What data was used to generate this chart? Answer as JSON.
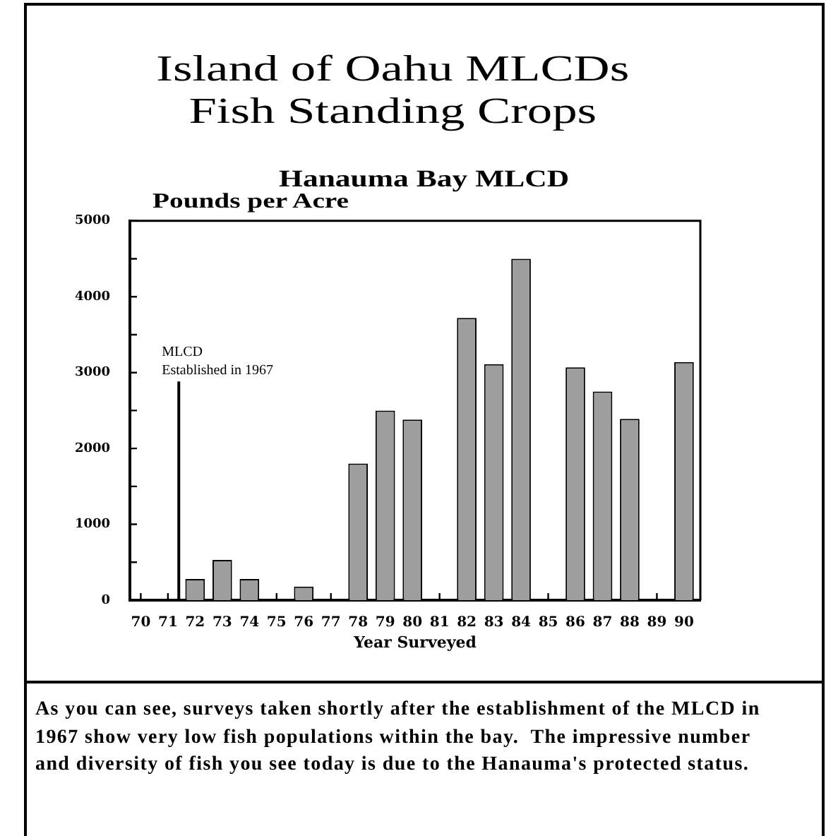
{
  "chart_data": {
    "type": "bar",
    "title": "Island of Oahu MLCDs\nFish Standing Crops",
    "subtitle": "Hanauma Bay MLCD",
    "ylabel": "Pounds per Acre",
    "xlabel": "Year Surveyed",
    "x": [
      72,
      73,
      74,
      76,
      78,
      79,
      80,
      82,
      83,
      84,
      86,
      87,
      88,
      90
    ],
    "values": [
      280,
      530,
      280,
      180,
      1800,
      2500,
      2380,
      3720,
      3110,
      4500,
      3070,
      2750,
      2390,
      3140
    ],
    "color": "#9e9e9e",
    "xlim": [
      69.6,
      90.6
    ],
    "xticks": [
      70,
      71,
      72,
      73,
      74,
      75,
      76,
      77,
      78,
      79,
      80,
      81,
      82,
      83,
      84,
      85,
      86,
      87,
      88,
      89,
      90
    ],
    "ylim": [
      0,
      5000
    ],
    "yticks": [
      0,
      {
        "value": 500,
        "label": null
      },
      1000,
      {
        "value": 1500,
        "label": null
      },
      2000,
      {
        "value": 2500,
        "label": null
      },
      3000,
      {
        "value": 3500,
        "label": null
      },
      4000,
      {
        "value": 4500,
        "label": null
      },
      5000
    ],
    "ref_lines": [
      {
        "axis": "x",
        "value": 71.4,
        "label": "MLCD\nEstablished in 1967"
      }
    ],
    "annotations": [
      "As you can see, surveys taken shortly after the establishment of the MLCD in 1967 show very low fish populations within the bay.  The impressive number and diversity of fish you see today is due to the Hanauma's protected status."
    ]
  }
}
